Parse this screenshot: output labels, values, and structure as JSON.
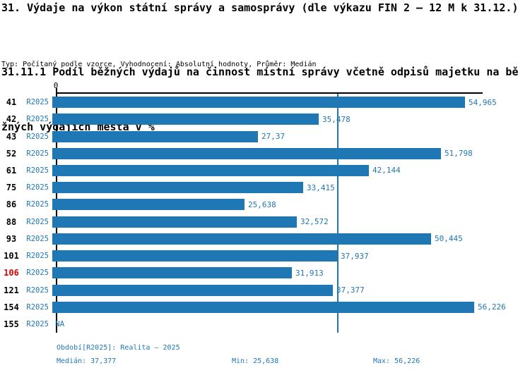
{
  "title": "31. Výdaje na výkon státní správy a samosprávy (dle výkazu FIN 2 – 12 M k 31.12.)",
  "subtitle_line1": "31.11.1 Podíl běžných výdajů na činnost místní správy včetně odpisů majetku na bě",
  "subtitle_line2": "žných výdajích města v %",
  "meta": "Typ: Počítaný podle vzorce, Vyhodnocení: Absolutní hodnoty, Průměr: Medián",
  "colors": {
    "bar": "#1f77b4",
    "blue_text": "#1f77b4",
    "highlight_id": "#dd0000",
    "axis": "#000000"
  },
  "chart_data": {
    "type": "bar",
    "orientation": "horizontal",
    "unit": "%",
    "xlabel": "",
    "ylabel": "",
    "x_zero_label": "0",
    "xlim": [
      0,
      56.6
    ],
    "grid": false,
    "series_label": "R2025",
    "median_value": 37.377,
    "categories": [
      "41",
      "42",
      "43",
      "52",
      "61",
      "75",
      "86",
      "88",
      "93",
      "101",
      "106",
      "121",
      "154",
      "155"
    ],
    "rows": [
      {
        "id": "41",
        "period": "R2025",
        "value": 54.965,
        "label": "54,965",
        "highlight": false
      },
      {
        "id": "42",
        "period": "R2025",
        "value": 35.478,
        "label": "35,478",
        "highlight": false
      },
      {
        "id": "43",
        "period": "R2025",
        "value": 27.37,
        "label": "27,37",
        "highlight": false
      },
      {
        "id": "52",
        "period": "R2025",
        "value": 51.798,
        "label": "51,798",
        "highlight": false
      },
      {
        "id": "61",
        "period": "R2025",
        "value": 42.144,
        "label": "42,144",
        "highlight": false
      },
      {
        "id": "75",
        "period": "R2025",
        "value": 33.415,
        "label": "33,415",
        "highlight": false
      },
      {
        "id": "86",
        "period": "R2025",
        "value": 25.638,
        "label": "25,638",
        "highlight": false
      },
      {
        "id": "88",
        "period": "R2025",
        "value": 32.572,
        "label": "32,572",
        "highlight": false
      },
      {
        "id": "93",
        "period": "R2025",
        "value": 50.445,
        "label": "50,445",
        "highlight": false
      },
      {
        "id": "101",
        "period": "R2025",
        "value": 37.937,
        "label": "37,937",
        "highlight": false
      },
      {
        "id": "106",
        "period": "R2025",
        "value": 31.913,
        "label": "31,913",
        "highlight": true
      },
      {
        "id": "121",
        "period": "R2025",
        "value": 37.377,
        "label": "37,377",
        "highlight": false
      },
      {
        "id": "154",
        "period": "R2025",
        "value": 56.226,
        "label": "56,226",
        "highlight": false
      },
      {
        "id": "155",
        "period": "R2025",
        "value": null,
        "label": "NA",
        "highlight": false
      }
    ]
  },
  "footer": {
    "period_line": "Období[R2025]: Realita – 2025",
    "median": "Medián: 37,377",
    "min": "Min: 25,638",
    "max": "Max: 56,226"
  }
}
